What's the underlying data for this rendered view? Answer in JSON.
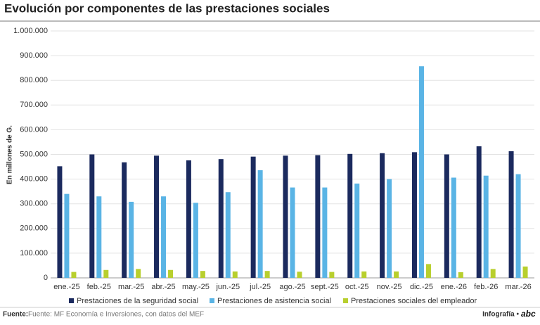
{
  "chart_data": {
    "type": "bar",
    "title": "Evolución por componentes de las prestaciones sociales",
    "y_label": "En millones de G.",
    "categories": [
      "ene.-25",
      "feb.-25",
      "mar.-25",
      "abr.-25",
      "may.-25",
      "jun.-25",
      "jul.-25",
      "ago.-25",
      "sept.-25",
      "oct.-25",
      "nov.-25",
      "dic.-25",
      "ene.-26",
      "feb.-26",
      "mar.-26"
    ],
    "series": [
      {
        "name": "Prestaciones de la seguridad social",
        "color": "#1b2a5e",
        "values": [
          452000,
          500000,
          468000,
          495000,
          476000,
          481000,
          491000,
          495000,
          497000,
          502000,
          505000,
          509000,
          500000,
          533000,
          513000
        ]
      },
      {
        "name": "Prestaciones de asistencia social",
        "color": "#5ab4e5",
        "values": [
          340000,
          330000,
          308000,
          330000,
          304000,
          347000,
          436000,
          366000,
          366000,
          382000,
          400000,
          857000,
          406000,
          414000,
          420000
        ]
      },
      {
        "name": "Prestaciones sociales del empleador",
        "color": "#b8cf2e",
        "values": [
          24000,
          32000,
          36000,
          32000,
          28000,
          26000,
          28000,
          25000,
          24000,
          26000,
          26000,
          56000,
          23000,
          36000,
          46000
        ]
      }
    ],
    "ylim": [
      0,
      1000000
    ],
    "yticks": [
      0,
      {
        "value": 100000,
        "label": "100.000"
      },
      {
        "value": 200000,
        "label": "200.000"
      },
      {
        "value": 300000,
        "label": "300.000"
      },
      {
        "value": 400000,
        "label": "400.000"
      },
      {
        "value": 500000,
        "label": "500.000"
      },
      {
        "value": 600000,
        "label": "600.000"
      },
      {
        "value": 700000,
        "label": "700.000"
      },
      {
        "value": 800000,
        "label": "800.000"
      },
      {
        "value": 900000,
        "label": "900.000"
      },
      {
        "value": 1000000,
        "label": "1.000.000"
      }
    ],
    "grid": true,
    "legend": "bottom",
    "source_label": "Fuente:",
    "source": "Fuente: MF Economía e Inversiones, con datos del MEF",
    "credit": "Infografía •",
    "logo": "abc"
  }
}
